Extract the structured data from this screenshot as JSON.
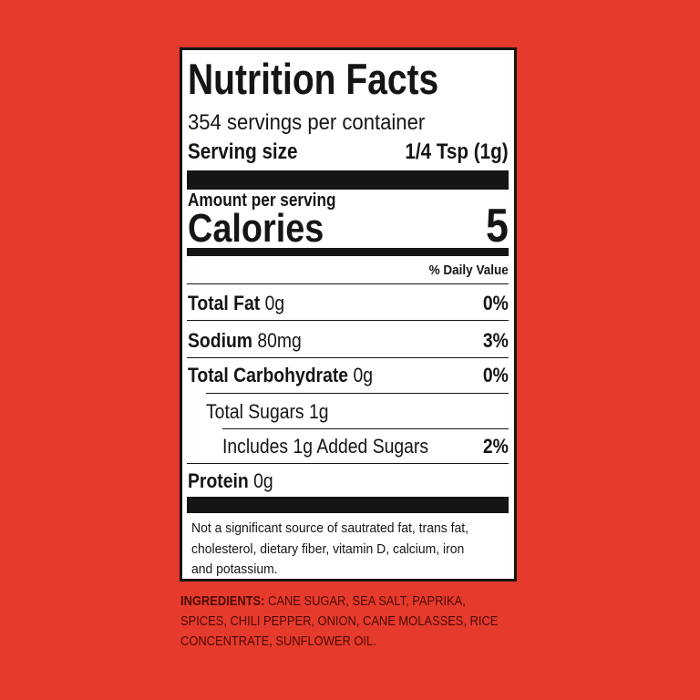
{
  "label": {
    "title": "Nutrition Facts",
    "servings": "354 servings per container",
    "serving_size": {
      "label": "Serving size",
      "value": "1/4 Tsp (1g)"
    },
    "amount_per_serving": "Amount per serving",
    "calories": {
      "label": "Calories",
      "value": "5"
    },
    "daily_value_header": "% Daily Value",
    "rows": [
      {
        "name": "Total Fat",
        "amount": "0g",
        "dv": "0%"
      },
      {
        "name": "Sodium",
        "amount": "80mg",
        "dv": "3%"
      },
      {
        "name": "Total Carbohydrate",
        "amount": "0g",
        "dv": "0%"
      },
      {
        "text": "Total Sugars 1g"
      },
      {
        "text": "Includes 1g Added Sugars",
        "dv": "2%"
      },
      {
        "name": "Protein",
        "amount": "0g"
      }
    ],
    "footnote": [
      "Not a significant source of sautrated fat, trans fat,",
      "cholesterol, dietary fiber, vitamin D, calcium, iron",
      "and potassium."
    ]
  },
  "ingredients": {
    "label": "INGREDIENTS:",
    "lines": [
      "CANE SUGAR, SEA SALT, PAPRIKA,",
      "SPICES, CHILI PEPPER, ONION, CANE MOLASSES, RICE",
      "CONCENTRATE, SUNFLOWER OIL."
    ]
  }
}
